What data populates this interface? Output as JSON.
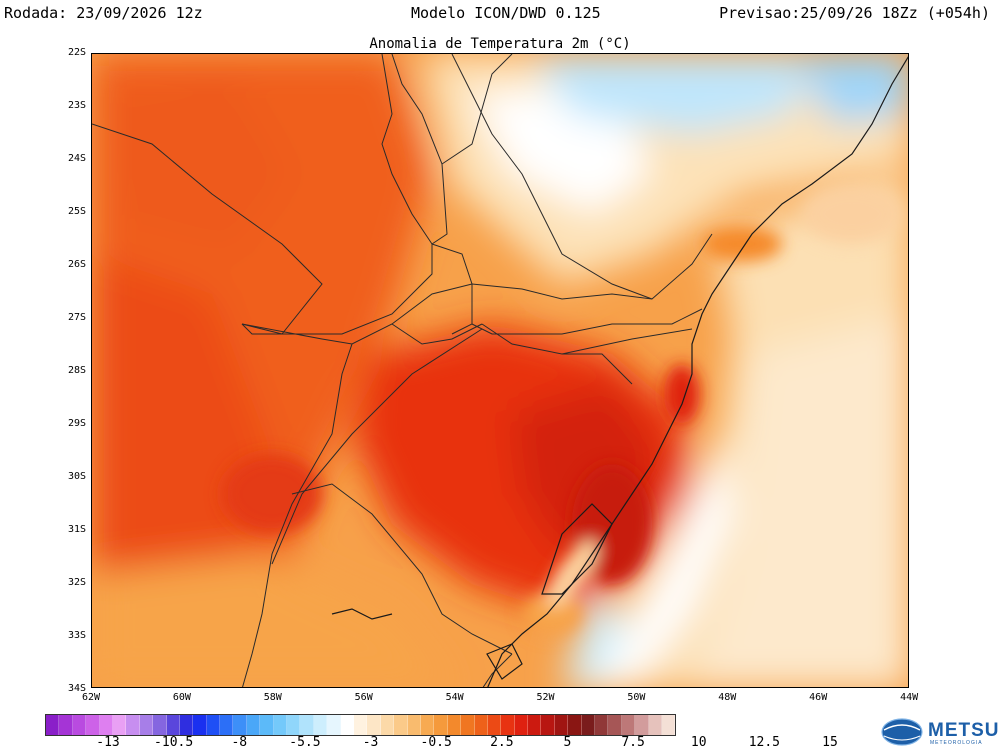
{
  "header": {
    "left": "Rodada: 23/09/2026 12z",
    "center": "Modelo ICON/DWD 0.125",
    "right": "Previsao:25/09/26 18Zz (+054h)"
  },
  "map": {
    "title": "Anomalia de Temperatura 2m (°C)",
    "lat_labels": [
      "22S",
      "23S",
      "24S",
      "25S",
      "26S",
      "27S",
      "28S",
      "29S",
      "30S",
      "31S",
      "32S",
      "33S",
      "34S"
    ],
    "lon_labels": [
      "62W",
      "60W",
      "58W",
      "56W",
      "54W",
      "52W",
      "50W",
      "48W",
      "46W",
      "44W"
    ],
    "lat_range": [
      -34,
      -22
    ],
    "lon_range": [
      -62,
      -44
    ]
  },
  "colorbar": {
    "tick_labels": [
      "-13",
      "-10.5",
      "-8",
      "-5.5",
      "-3",
      "-0.5",
      "2.5",
      "5",
      "7.5",
      "10",
      "12.5",
      "15"
    ],
    "colors": [
      "#8a1fc9",
      "#a534d6",
      "#b94be0",
      "#cd62e8",
      "#de7ff0",
      "#e9a0f4",
      "#c78ef0",
      "#a77ee8",
      "#8566e0",
      "#5a46dc",
      "#2f2ee0",
      "#1a30f0",
      "#1f4ff5",
      "#2c6ff7",
      "#3d8ff8",
      "#4aa7f8",
      "#5cbaf9",
      "#74c9fa",
      "#90d6fb",
      "#b0e3fc",
      "#cdeefd",
      "#e6f6fe",
      "#ffffff",
      "#fff2e0",
      "#fde6c6",
      "#fcd9a8",
      "#fbca89",
      "#f9bb6e",
      "#f7aa52",
      "#f59a3c",
      "#f3892c",
      "#f07621",
      "#ee611a",
      "#ec4a15",
      "#e83312",
      "#df2110",
      "#cc1a10",
      "#b81611",
      "#a01512",
      "#8a1613",
      "#7a1c1c",
      "#903838",
      "#a65656",
      "#bd7878",
      "#d29c9c",
      "#e6c2bc",
      "#f4e0d6"
    ]
  },
  "logo": {
    "name": "METSUL",
    "subtitle": "METEOROLOGIA",
    "icon": "globe-icon"
  }
}
